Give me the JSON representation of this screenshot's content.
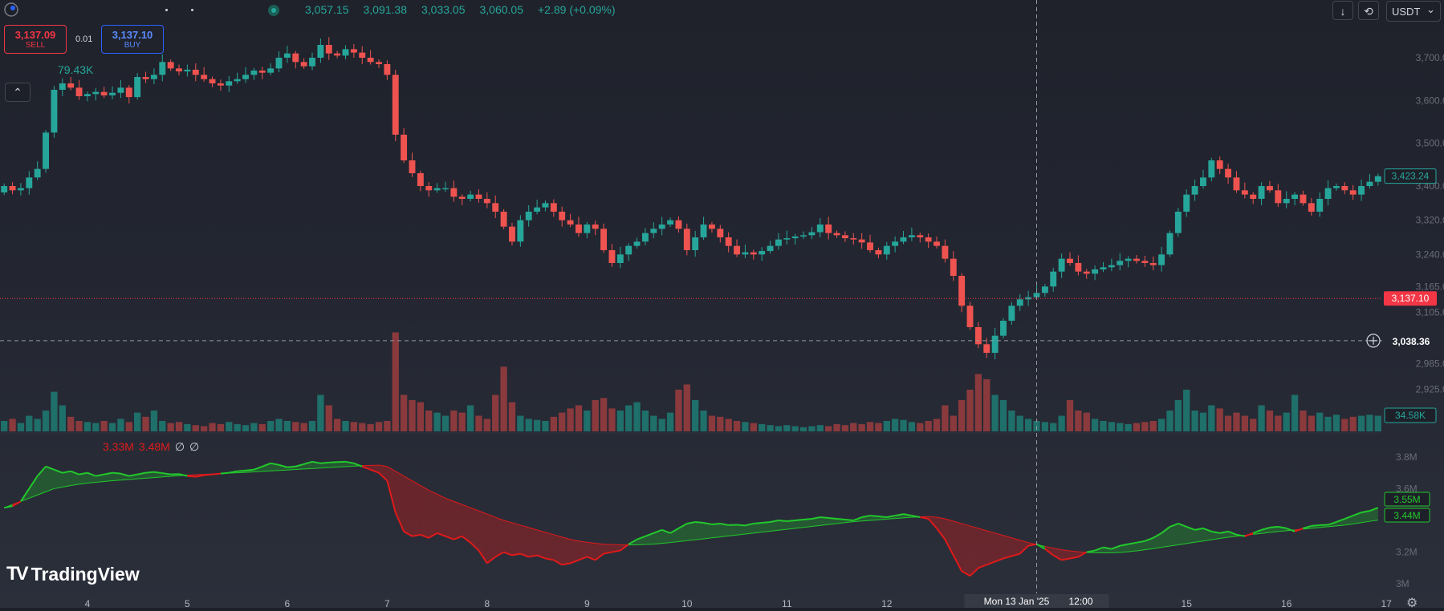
{
  "header": {
    "open": "3,057.15",
    "high": "3,091.38",
    "low": "3,033.05",
    "close": "3,060.05",
    "change": "+2.89 (+0.09%)"
  },
  "trade": {
    "sell_price": "3,137.09",
    "sell_label": "SELL",
    "spread": "0.01",
    "buy_price": "3,137.10",
    "buy_label": "BUY"
  },
  "volume_legend": "79.43K",
  "collapse_icon": "chevron-up-icon",
  "indicator_legend": {
    "v1": "3.33M",
    "v2": "3.48M",
    "v3": "∅",
    "v4": "∅"
  },
  "toolbar": {
    "download_icon": "arrow-down-icon",
    "sync_icon": "sync-icon",
    "currency": "USDT",
    "currency_chevron": "⌄"
  },
  "branding": {
    "logo_mark": "TV",
    "name": "TradingView"
  },
  "chart_data": {
    "type": "candlestick",
    "price_axis_ticks": [
      "3,700.00",
      "3,600.00",
      "3,500.00",
      "3,400.00",
      "3,320.00",
      "3,240.00",
      "3,165.00",
      "3,105.00",
      "2,985.00",
      "2,925.00"
    ],
    "price_range": [
      2860,
      3760
    ],
    "time_axis_ticks": [
      "4",
      "5",
      "6",
      "7",
      "8",
      "9",
      "10",
      "11",
      "12",
      "15",
      "16",
      "17"
    ],
    "crosshair_time_label": "Mon 13 Jan '25",
    "crosshair_time_label2": "12:00",
    "crosshair_price_label": "3,038.36",
    "last_price_label": "3,423.24",
    "bid_line_label": "3,137.10",
    "volume_last_label": "34.58K",
    "indicator_axis_ticks": [
      "3.8M",
      "3.6M",
      "3.2M",
      "3M"
    ],
    "indicator_last_labels": [
      "3.55M",
      "3.44M"
    ],
    "indicator_range": [
      2950000,
      3850000
    ],
    "colors": {
      "up": "#26a69a",
      "down": "#ef5350",
      "up_vol": "#1f6f6a",
      "down_vol": "#8a3a3d",
      "ind_up": "#22c92b",
      "ind_down": "#e01a1a"
    },
    "close_series": [
      3400,
      3390,
      3395,
      3420,
      3440,
      3525,
      3625,
      3640,
      3630,
      3610,
      3615,
      3620,
      3612,
      3618,
      3630,
      3608,
      3655,
      3650,
      3660,
      3690,
      3675,
      3668,
      3672,
      3660,
      3650,
      3640,
      3635,
      3645,
      3650,
      3660,
      3670,
      3665,
      3675,
      3700,
      3710,
      3690,
      3680,
      3700,
      3730,
      3710,
      3705,
      3720,
      3712,
      3700,
      3690,
      3685,
      3660,
      3520,
      3460,
      3430,
      3400,
      3390,
      3395,
      3395,
      3375,
      3370,
      3380,
      3370,
      3360,
      3340,
      3305,
      3270,
      3320,
      3340,
      3350,
      3360,
      3340,
      3320,
      3310,
      3290,
      3310,
      3300,
      3250,
      3220,
      3240,
      3260,
      3270,
      3290,
      3300,
      3310,
      3320,
      3300,
      3250,
      3280,
      3310,
      3300,
      3280,
      3260,
      3240,
      3245,
      3240,
      3248,
      3260,
      3275,
      3278,
      3282,
      3285,
      3292,
      3310,
      3290,
      3285,
      3278,
      3275,
      3268,
      3250,
      3240,
      3260,
      3270,
      3280,
      3285,
      3280,
      3270,
      3260,
      3230,
      3190,
      3120,
      3070,
      3030,
      3010,
      3050,
      3085,
      3120,
      3135,
      3140,
      3150,
      3165,
      3200,
      3230,
      3220,
      3200,
      3195,
      3205,
      3210,
      3215,
      3225,
      3230,
      3225,
      3220,
      3215,
      3240,
      3290,
      3340,
      3380,
      3400,
      3420,
      3460,
      3440,
      3420,
      3390,
      3380,
      3370,
      3400,
      3390,
      3360,
      3370,
      3380,
      3360,
      3340,
      3370,
      3395,
      3400,
      3390,
      3380,
      3400,
      3410,
      3423
    ],
    "volume_series": [
      0.1,
      0.12,
      0.08,
      0.15,
      0.12,
      0.2,
      0.38,
      0.25,
      0.14,
      0.1,
      0.09,
      0.08,
      0.1,
      0.08,
      0.12,
      0.09,
      0.18,
      0.14,
      0.2,
      0.1,
      0.08,
      0.09,
      0.07,
      0.06,
      0.05,
      0.08,
      0.07,
      0.09,
      0.07,
      0.06,
      0.08,
      0.07,
      0.1,
      0.12,
      0.1,
      0.09,
      0.08,
      0.1,
      0.35,
      0.25,
      0.12,
      0.1,
      0.09,
      0.08,
      0.07,
      0.09,
      0.1,
      0.95,
      0.35,
      0.3,
      0.28,
      0.2,
      0.18,
      0.15,
      0.2,
      0.18,
      0.25,
      0.15,
      0.12,
      0.35,
      0.62,
      0.28,
      0.15,
      0.12,
      0.11,
      0.1,
      0.14,
      0.18,
      0.22,
      0.25,
      0.2,
      0.3,
      0.32,
      0.22,
      0.2,
      0.25,
      0.28,
      0.2,
      0.15,
      0.12,
      0.18,
      0.4,
      0.45,
      0.3,
      0.2,
      0.15,
      0.14,
      0.12,
      0.1,
      0.09,
      0.08,
      0.07,
      0.06,
      0.05,
      0.06,
      0.05,
      0.04,
      0.05,
      0.06,
      0.05,
      0.07,
      0.06,
      0.08,
      0.07,
      0.09,
      0.08,
      0.1,
      0.12,
      0.11,
      0.09,
      0.08,
      0.1,
      0.12,
      0.25,
      0.15,
      0.3,
      0.4,
      0.55,
      0.5,
      0.35,
      0.3,
      0.2,
      0.15,
      0.12,
      0.1,
      0.09,
      0.08,
      0.15,
      0.3,
      0.2,
      0.18,
      0.12,
      0.1,
      0.09,
      0.08,
      0.07,
      0.08,
      0.09,
      0.1,
      0.12,
      0.2,
      0.3,
      0.4,
      0.2,
      0.18,
      0.25,
      0.22,
      0.15,
      0.18,
      0.15,
      0.12,
      0.25,
      0.2,
      0.15,
      0.18,
      0.35,
      0.2,
      0.15,
      0.18,
      0.14,
      0.16,
      0.12,
      0.14,
      0.15,
      0.16,
      0.15
    ],
    "indicator_fast": [
      3480000,
      3490000,
      3520000,
      3600000,
      3680000,
      3740000,
      3720000,
      3700000,
      3710000,
      3690000,
      3700000,
      3680000,
      3690000,
      3700000,
      3695000,
      3680000,
      3690000,
      3700000,
      3705000,
      3698000,
      3690000,
      3692000,
      3680000,
      3675000,
      3685000,
      3690000,
      3695000,
      3700000,
      3710000,
      3715000,
      3720000,
      3740000,
      3760000,
      3750000,
      3735000,
      3740000,
      3755000,
      3770000,
      3760000,
      3765000,
      3768000,
      3770000,
      3760000,
      3740000,
      3720000,
      3700000,
      3650000,
      3450000,
      3330000,
      3300000,
      3310000,
      3290000,
      3320000,
      3300000,
      3280000,
      3300000,
      3260000,
      3210000,
      3130000,
      3170000,
      3200000,
      3180000,
      3190000,
      3170000,
      3180000,
      3160000,
      3150000,
      3120000,
      3130000,
      3150000,
      3170000,
      3150000,
      3190000,
      3200000,
      3210000,
      3250000,
      3280000,
      3300000,
      3320000,
      3340000,
      3320000,
      3350000,
      3380000,
      3390000,
      3385000,
      3375000,
      3380000,
      3370000,
      3372000,
      3368000,
      3380000,
      3385000,
      3390000,
      3400000,
      3395000,
      3400000,
      3405000,
      3410000,
      3420000,
      3415000,
      3410000,
      3405000,
      3400000,
      3420000,
      3430000,
      3425000,
      3420000,
      3430000,
      3440000,
      3430000,
      3420000,
      3410000,
      3350000,
      3280000,
      3180000,
      3080000,
      3050000,
      3100000,
      3120000,
      3140000,
      3160000,
      3175000,
      3190000,
      3240000,
      3250000,
      3220000,
      3180000,
      3150000,
      3160000,
      3170000,
      3200000,
      3210000,
      3230000,
      3220000,
      3240000,
      3250000,
      3260000,
      3270000,
      3290000,
      3320000,
      3360000,
      3380000,
      3360000,
      3340000,
      3350000,
      3330000,
      3320000,
      3330000,
      3310000,
      3300000,
      3320000,
      3340000,
      3355000,
      3360000,
      3350000,
      3330000,
      3350000,
      3365000,
      3370000,
      3372000,
      3390000,
      3410000,
      3430000,
      3450000,
      3460000,
      3480000,
      3500000,
      3520000,
      3530000,
      3548000,
      3555000
    ],
    "indicator_slow": [
      3480000,
      3500000,
      3520000,
      3540000,
      3560000,
      3580000,
      3600000,
      3610000,
      3620000,
      3628000,
      3635000,
      3640000,
      3645000,
      3650000,
      3654000,
      3658000,
      3662000,
      3666000,
      3670000,
      3674000,
      3678000,
      3682000,
      3685000,
      3688000,
      3690000,
      3692000,
      3695000,
      3698000,
      3700000,
      3703000,
      3706000,
      3709000,
      3712000,
      3715000,
      3718000,
      3721000,
      3724000,
      3727000,
      3730000,
      3733000,
      3736000,
      3739000,
      3742000,
      3745000,
      3747000,
      3748000,
      3740000,
      3710000,
      3680000,
      3650000,
      3620000,
      3590000,
      3565000,
      3540000,
      3520000,
      3500000,
      3480000,
      3460000,
      3440000,
      3420000,
      3400000,
      3385000,
      3370000,
      3355000,
      3340000,
      3325000,
      3310000,
      3295000,
      3280000,
      3270000,
      3262000,
      3255000,
      3250000,
      3248000,
      3246000,
      3245000,
      3246000,
      3248000,
      3250000,
      3255000,
      3260000,
      3266000,
      3272000,
      3278000,
      3284000,
      3290000,
      3296000,
      3302000,
      3308000,
      3314000,
      3320000,
      3326000,
      3332000,
      3338000,
      3344000,
      3350000,
      3356000,
      3362000,
      3368000,
      3374000,
      3380000,
      3386000,
      3392000,
      3396000,
      3400000,
      3404000,
      3408000,
      3412000,
      3416000,
      3420000,
      3422000,
      3424000,
      3420000,
      3410000,
      3395000,
      3380000,
      3365000,
      3350000,
      3335000,
      3320000,
      3305000,
      3290000,
      3275000,
      3260000,
      3248000,
      3236000,
      3225000,
      3215000,
      3208000,
      3202000,
      3198000,
      3196000,
      3195000,
      3196000,
      3198000,
      3202000,
      3208000,
      3215000,
      3222000,
      3230000,
      3238000,
      3246000,
      3254000,
      3262000,
      3270000,
      3278000,
      3286000,
      3294000,
      3300000,
      3306000,
      3312000,
      3318000,
      3324000,
      3330000,
      3335000,
      3340000,
      3345000,
      3350000,
      3355000,
      3360000,
      3365000,
      3370000,
      3378000,
      3386000,
      3394000,
      3402000,
      3410000,
      3418000,
      3426000,
      3434000,
      3440000
    ]
  }
}
